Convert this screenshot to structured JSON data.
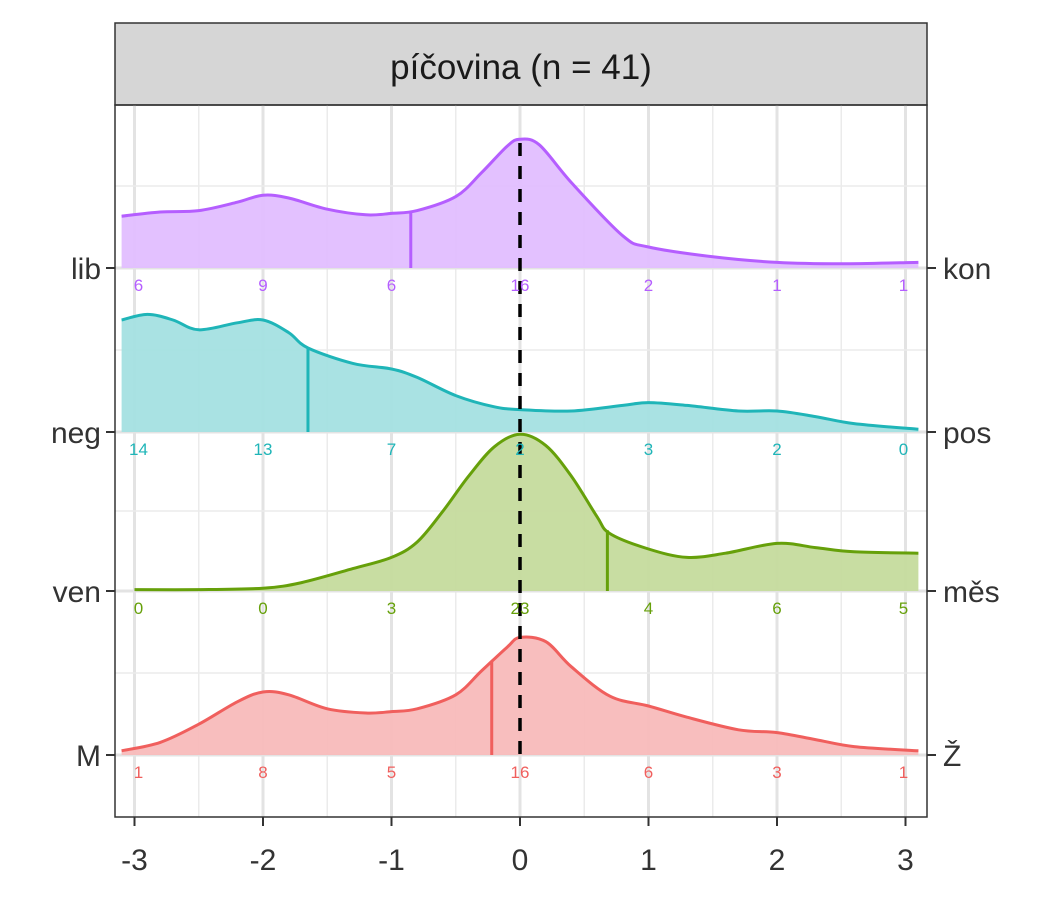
{
  "chart_data": {
    "type": "area",
    "title": "píčovina (n = 41)",
    "xlabel": "",
    "ylabel": "",
    "xlim": [
      -3.1,
      3.1
    ],
    "x_ticks": [
      -3,
      -2,
      -1,
      0,
      1,
      2,
      3
    ],
    "x_tick_labels": [
      "-3",
      "-2",
      "-1",
      "0",
      "1",
      "2",
      "3"
    ],
    "reference_line_x": 0,
    "grid": true,
    "legend": "none",
    "count_positions": [
      -3,
      -2,
      -1,
      0,
      1,
      2,
      3
    ],
    "series": [
      {
        "left_label": "lib",
        "right_label": "kon",
        "color": "#B55EFF",
        "fill": "#E1BEFF",
        "mean": -0.85,
        "counts": [
          "6",
          "9",
          "6",
          "16",
          "2",
          "1",
          "1"
        ],
        "density_x": [
          -3.1,
          -2.8,
          -2.5,
          -2.2,
          -2.0,
          -1.8,
          -1.5,
          -1.2,
          -1.0,
          -0.8,
          -0.5,
          -0.3,
          -0.1,
          0.0,
          0.15,
          0.4,
          0.8,
          1.0,
          1.5,
          2.0,
          2.5,
          3.1
        ],
        "density_y": [
          0.37,
          0.4,
          0.41,
          0.47,
          0.52,
          0.5,
          0.42,
          0.38,
          0.39,
          0.41,
          0.51,
          0.68,
          0.87,
          0.92,
          0.88,
          0.61,
          0.23,
          0.15,
          0.08,
          0.04,
          0.03,
          0.04
        ]
      },
      {
        "left_label": "neg",
        "right_label": "pos",
        "color": "#1FB5B8",
        "fill": "#A4E0E1",
        "mean": -1.65,
        "counts": [
          "14",
          "13",
          "7",
          "2",
          "3",
          "2",
          "0"
        ],
        "density_x": [
          -3.1,
          -2.9,
          -2.7,
          -2.5,
          -2.2,
          -2.0,
          -1.8,
          -1.65,
          -1.3,
          -1.0,
          -0.8,
          -0.5,
          -0.2,
          0.0,
          0.4,
          0.8,
          1.0,
          1.3,
          1.7,
          2.0,
          2.3,
          2.6,
          3.1
        ],
        "density_y": [
          0.8,
          0.84,
          0.8,
          0.73,
          0.78,
          0.8,
          0.71,
          0.6,
          0.49,
          0.45,
          0.39,
          0.26,
          0.18,
          0.16,
          0.15,
          0.19,
          0.21,
          0.19,
          0.15,
          0.15,
          0.11,
          0.06,
          0.02
        ]
      },
      {
        "left_label": "ven",
        "right_label": "měs",
        "color": "#66A00A",
        "fill": "#C5DB9D",
        "mean": 0.68,
        "counts": [
          "0",
          "0",
          "3",
          "23",
          "4",
          "6",
          "5"
        ],
        "density_x": [
          -3.0,
          -2.5,
          -2.0,
          -1.7,
          -1.3,
          -1.0,
          -0.8,
          -0.6,
          -0.4,
          -0.2,
          0.0,
          0.2,
          0.4,
          0.6,
          0.7,
          1.0,
          1.3,
          1.6,
          2.0,
          2.3,
          2.6,
          3.1
        ],
        "density_y": [
          0.01,
          0.01,
          0.02,
          0.06,
          0.16,
          0.24,
          0.35,
          0.57,
          0.82,
          1.03,
          1.12,
          1.04,
          0.82,
          0.53,
          0.41,
          0.3,
          0.24,
          0.27,
          0.34,
          0.31,
          0.28,
          0.27
        ]
      },
      {
        "left_label": "M",
        "right_label": "Ž",
        "color": "#F05F5D",
        "fill": "#F8BABA",
        "mean": -0.22,
        "counts": [
          "1",
          "8",
          "5",
          "16",
          "6",
          "3",
          "1"
        ],
        "density_x": [
          -3.1,
          -2.8,
          -2.5,
          -2.2,
          -2.0,
          -1.8,
          -1.5,
          -1.2,
          -1.0,
          -0.8,
          -0.5,
          -0.3,
          -0.1,
          0.0,
          0.2,
          0.4,
          0.7,
          1.0,
          1.3,
          1.7,
          2.0,
          2.3,
          2.6,
          3.1
        ],
        "density_y": [
          0.03,
          0.09,
          0.22,
          0.38,
          0.45,
          0.43,
          0.33,
          0.3,
          0.31,
          0.33,
          0.43,
          0.6,
          0.77,
          0.84,
          0.81,
          0.63,
          0.42,
          0.35,
          0.27,
          0.18,
          0.16,
          0.11,
          0.06,
          0.03
        ]
      }
    ]
  }
}
